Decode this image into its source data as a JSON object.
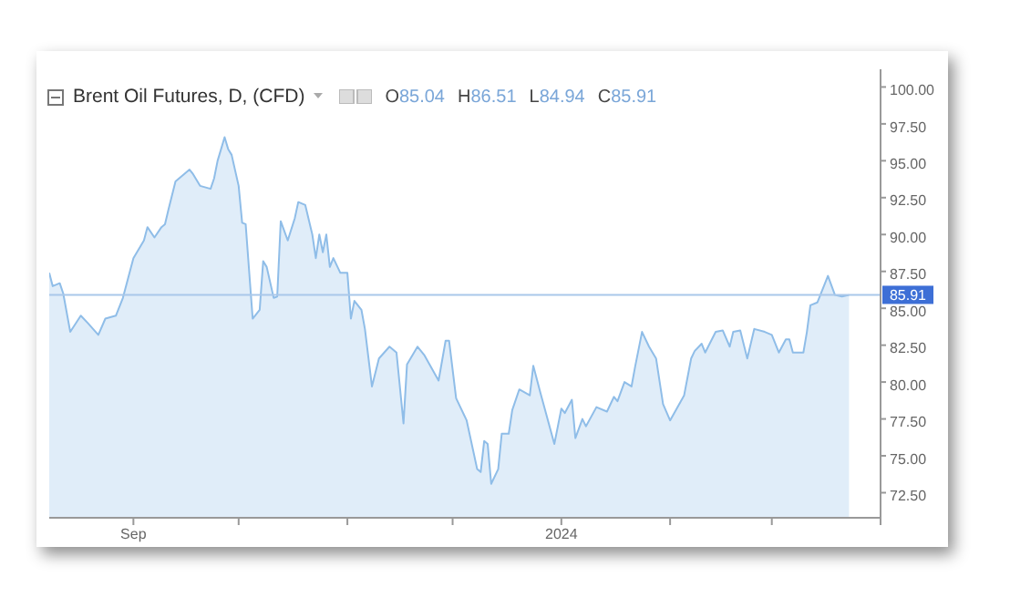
{
  "chart_data": {
    "type": "area",
    "title": "Brent Oil Futures, D, (CFD)",
    "annotations": [
      "O85.04",
      "H86.51",
      "L84.94",
      "C85.91"
    ],
    "x": [
      "2023-08-08",
      "2023-08-09",
      "2023-08-11",
      "2023-08-12",
      "2023-08-14",
      "2023-08-17",
      "2023-08-19",
      "2023-08-22",
      "2023-08-24",
      "2023-08-27",
      "2023-08-29",
      "2023-09-01",
      "2023-09-04",
      "2023-09-05",
      "2023-09-07",
      "2023-09-09",
      "2023-09-10",
      "2023-09-11",
      "2023-09-13",
      "2023-09-16",
      "2023-09-17",
      "2023-09-18",
      "2023-09-20",
      "2023-09-23",
      "2023-09-24",
      "2023-09-25",
      "2023-09-27",
      "2023-09-28",
      "2023-09-29",
      "2023-10-01",
      "2023-10-02",
      "2023-10-03",
      "2023-10-05",
      "2023-10-07",
      "2023-10-08",
      "2023-10-09",
      "2023-10-11",
      "2023-10-12",
      "2023-10-13",
      "2023-10-15",
      "2023-10-17",
      "2023-10-18",
      "2023-10-20",
      "2023-10-22",
      "2023-10-23",
      "2023-10-24",
      "2023-10-25",
      "2023-10-26",
      "2023-10-27",
      "2023-10-28",
      "2023-10-30",
      "2023-11-01",
      "2023-11-02",
      "2023-11-03",
      "2023-11-05",
      "2023-11-06",
      "2023-11-08",
      "2023-11-10",
      "2023-11-13",
      "2023-11-15",
      "2023-11-17",
      "2023-11-18",
      "2023-11-21",
      "2023-11-23",
      "2023-11-27",
      "2023-11-29",
      "2023-11-30",
      "2023-12-02",
      "2023-12-05",
      "2023-12-08",
      "2023-12-09",
      "2023-12-10",
      "2023-12-11",
      "2023-12-12",
      "2023-12-14",
      "2023-12-15",
      "2023-12-17",
      "2023-12-18",
      "2023-12-20",
      "2023-12-23",
      "2023-12-24",
      "2023-12-26",
      "2023-12-30",
      "2024-01-01",
      "2024-01-02",
      "2024-01-04",
      "2024-01-05",
      "2024-01-07",
      "2024-01-08",
      "2024-01-11",
      "2024-01-14",
      "2024-01-16",
      "2024-01-17",
      "2024-01-19",
      "2024-01-21",
      "2024-01-22",
      "2024-01-24",
      "2024-01-26",
      "2024-01-28",
      "2024-01-30",
      "2024-02-01",
      "2024-02-05",
      "2024-02-07",
      "2024-02-08",
      "2024-02-10",
      "2024-02-11",
      "2024-02-14",
      "2024-02-16",
      "2024-02-18",
      "2024-02-19",
      "2024-02-21",
      "2024-02-23",
      "2024-02-25",
      "2024-02-28",
      "2024-03-01",
      "2024-03-03",
      "2024-03-05",
      "2024-03-06",
      "2024-03-07",
      "2024-03-10",
      "2024-03-11",
      "2024-03-12",
      "2024-03-14",
      "2024-03-17",
      "2024-03-19",
      "2024-03-21",
      "2024-03-23"
    ],
    "values": [
      87.4,
      86.5,
      86.7,
      86.0,
      83.4,
      84.5,
      84.0,
      83.2,
      84.3,
      84.5,
      85.7,
      88.4,
      89.6,
      90.5,
      89.8,
      90.5,
      90.7,
      91.7,
      93.6,
      94.2,
      94.4,
      94.1,
      93.3,
      93.1,
      93.8,
      95.0,
      96.6,
      95.8,
      95.4,
      93.3,
      90.8,
      90.7,
      84.3,
      84.9,
      88.2,
      87.8,
      85.7,
      85.8,
      90.9,
      89.6,
      91.1,
      92.2,
      92.0,
      90.0,
      88.4,
      90.0,
      88.8,
      90.0,
      87.8,
      88.4,
      87.4,
      87.4,
      84.3,
      85.5,
      84.9,
      83.6,
      79.7,
      81.6,
      82.4,
      82.0,
      77.2,
      81.2,
      82.4,
      81.8,
      80.1,
      82.8,
      82.8,
      78.9,
      77.4,
      74.1,
      73.9,
      76.0,
      75.8,
      73.1,
      74.1,
      76.5,
      76.5,
      78.1,
      79.5,
      79.1,
      81.1,
      79.3,
      75.8,
      78.2,
      77.9,
      78.8,
      76.2,
      77.5,
      77.0,
      78.3,
      78.0,
      79.0,
      78.7,
      80.0,
      79.7,
      81.0,
      83.4,
      82.4,
      81.6,
      78.5,
      77.4,
      79.1,
      81.6,
      82.1,
      82.6,
      82.0,
      83.4,
      83.5,
      82.4,
      83.4,
      83.5,
      81.6,
      83.6,
      83.4,
      83.2,
      82.0,
      82.9,
      82.9,
      82.0,
      82.0,
      83.4,
      85.2,
      85.4,
      87.2,
      85.9,
      85.8,
      85.9
    ],
    "color": "#8fbde8",
    "xlim": [
      "2023-08-08",
      "2024-04-01"
    ],
    "xticks": [
      {
        "value": "2023-09-01",
        "label": "Sep"
      },
      {
        "value": "2023-10-01",
        "label": null
      },
      {
        "value": "2023-11-01",
        "label": null
      },
      {
        "value": "2023-12-01",
        "label": null
      },
      {
        "value": "2024-01-01",
        "label": "2024"
      },
      {
        "value": "2024-02-01",
        "label": null
      },
      {
        "value": "2024-03-01",
        "label": null
      },
      {
        "value": "2024-04-01",
        "label": null
      }
    ],
    "ylim": [
      70.8,
      101.2
    ],
    "yticks": [
      {
        "value": 72.5,
        "label": "72.50"
      },
      {
        "value": 75,
        "label": "75.00"
      },
      {
        "value": 77.5,
        "label": "77.50"
      },
      {
        "value": 80,
        "label": "80.00"
      },
      {
        "value": 82.5,
        "label": "82.50"
      },
      {
        "value": 85,
        "label": "85.00"
      },
      {
        "value": 87.5,
        "label": "87.50"
      },
      {
        "value": 90,
        "label": "90.00"
      },
      {
        "value": 92.5,
        "label": "92.50"
      },
      {
        "value": 95,
        "label": "95.00"
      },
      {
        "value": 97.5,
        "label": "97.50"
      },
      {
        "value": 100,
        "label": "100.00"
      }
    ],
    "ref_lines": [
      {
        "axis": "y",
        "value": 85.91,
        "label": "85.91",
        "color": "#a9c8ea"
      }
    ]
  }
}
